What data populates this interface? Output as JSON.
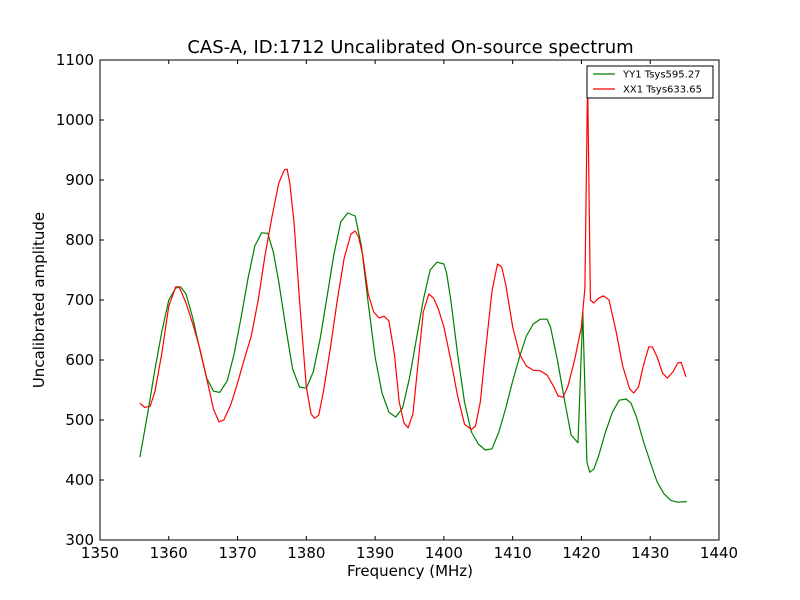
{
  "chart_data": {
    "type": "line",
    "title": "CAS-A, ID:1712 Uncalibrated On-source spectrum",
    "xlabel": "Frequency (MHz)",
    "ylabel": "Uncalibrated amplitude",
    "xlim": [
      1350,
      1440
    ],
    "ylim": [
      300,
      1100
    ],
    "xticks": [
      "1350",
      "1360",
      "1370",
      "1380",
      "1390",
      "1400",
      "1410",
      "1420",
      "1430",
      "1440"
    ],
    "yticks": [
      "300",
      "400",
      "500",
      "600",
      "700",
      "800",
      "900",
      "1000",
      "1100"
    ],
    "grid": false,
    "legend_position": "top-right",
    "series": [
      {
        "name": "YY1 Tsys595.27",
        "color": "#008000",
        "x": [
          1355.8,
          1357,
          1358,
          1359,
          1360,
          1361,
          1361.7,
          1362.5,
          1363.5,
          1364.5,
          1365.5,
          1366.5,
          1367.4,
          1368.5,
          1369.5,
          1370.5,
          1371.5,
          1372.5,
          1373.5,
          1374.4,
          1375.2,
          1376,
          1377,
          1378,
          1379,
          1380,
          1381,
          1382,
          1383,
          1384,
          1385,
          1386,
          1387.1,
          1388,
          1389,
          1390,
          1391,
          1392,
          1393,
          1394,
          1395,
          1396,
          1397,
          1398,
          1399,
          1400,
          1400.4,
          1401,
          1402,
          1403,
          1404,
          1405,
          1406,
          1407,
          1408,
          1409,
          1410,
          1411,
          1412,
          1413,
          1414,
          1415,
          1415.5,
          1416.5,
          1417.5,
          1418.5,
          1419.5,
          1420.2,
          1420.8,
          1421.2,
          1421.8,
          1422.5,
          1423.5,
          1424.5,
          1425.5,
          1426.5,
          1427.2,
          1428,
          1429,
          1430,
          1431,
          1432,
          1433,
          1434,
          1435.3
        ],
        "y": [
          438,
          515,
          585,
          648,
          700,
          720,
          722,
          710,
          670,
          618,
          570,
          548,
          546,
          565,
          610,
          670,
          735,
          790,
          812,
          811,
          780,
          730,
          655,
          585,
          555,
          553,
          580,
          635,
          705,
          775,
          830,
          845,
          840,
          790,
          695,
          605,
          545,
          513,
          505,
          520,
          570,
          635,
          700,
          750,
          763,
          760,
          745,
          700,
          610,
          530,
          480,
          460,
          450,
          452,
          480,
          520,
          565,
          605,
          640,
          660,
          668,
          668,
          655,
          600,
          535,
          475,
          462,
          680,
          430,
          413,
          418,
          440,
          480,
          513,
          533,
          535,
          528,
          505,
          465,
          430,
          397,
          377,
          366,
          363,
          364
        ]
      },
      {
        "name": "XX1 Tsys633.65",
        "color": "#ff0000",
        "x": [
          1355.8,
          1356.5,
          1357.3,
          1358,
          1359,
          1360,
          1361,
          1361.5,
          1362.5,
          1363.5,
          1364.5,
          1365.5,
          1366.5,
          1367.3,
          1368,
          1369,
          1370,
          1371,
          1372,
          1373,
          1374,
          1375,
          1376,
          1376.8,
          1377.2,
          1377.6,
          1378.2,
          1379,
          1380,
          1380.7,
          1381.2,
          1381.8,
          1382.5,
          1383.5,
          1384.5,
          1385.5,
          1386.5,
          1387.1,
          1387.6,
          1388.2,
          1389,
          1389.8,
          1390.6,
          1391.3,
          1392,
          1392.8,
          1393.5,
          1394.2,
          1394.8,
          1395.5,
          1396.2,
          1397,
          1397.8,
          1398.5,
          1399.2,
          1400,
          1401,
          1402,
          1403,
          1404,
          1404.6,
          1405.3,
          1406,
          1407,
          1407.8,
          1408.4,
          1409,
          1410,
          1411,
          1412,
          1413,
          1414,
          1415,
          1416,
          1416.6,
          1417.3,
          1418,
          1419,
          1420,
          1420.5,
          1420.9,
          1421.3,
          1421.8,
          1422.5,
          1423.2,
          1424,
          1425,
          1426,
          1427,
          1427.6,
          1428.3,
          1429,
          1429.8,
          1430.3,
          1431,
          1431.8,
          1432.5,
          1433.3,
          1434,
          1434.5,
          1435.2
        ],
        "y": [
          528,
          521,
          523,
          548,
          612,
          690,
          722,
          722,
          695,
          660,
          620,
          570,
          518,
          497,
          500,
          525,
          562,
          602,
          640,
          700,
          775,
          838,
          895,
          917,
          918,
          895,
          830,
          700,
          555,
          510,
          503,
          508,
          548,
          620,
          700,
          770,
          810,
          815,
          805,
          775,
          710,
          680,
          670,
          673,
          665,
          610,
          530,
          495,
          487,
          510,
          590,
          680,
          710,
          703,
          685,
          655,
          600,
          540,
          493,
          484,
          490,
          530,
          610,
          715,
          760,
          755,
          725,
          655,
          610,
          590,
          583,
          582,
          575,
          555,
          540,
          538,
          555,
          600,
          655,
          720,
          1068,
          700,
          695,
          703,
          707,
          700,
          650,
          590,
          552,
          545,
          555,
          590,
          622,
          622,
          605,
          578,
          570,
          580,
          595,
          596,
          572
        ]
      }
    ]
  }
}
